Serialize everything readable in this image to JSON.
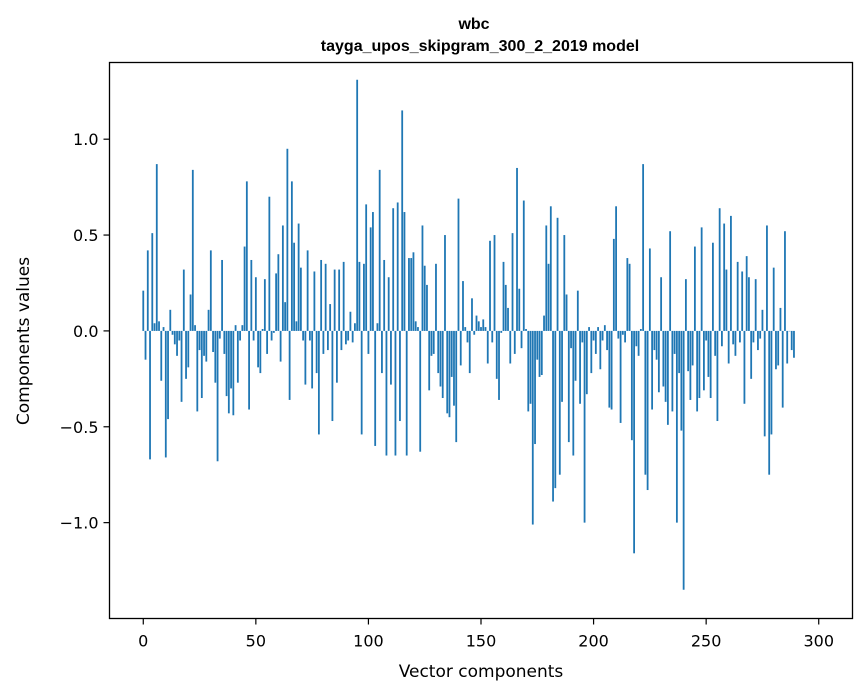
{
  "chart_data": {
    "type": "bar",
    "title": "wbc",
    "subtitle": "tayga_upos_skipgram_300_2_2019 model",
    "xlabel": "Vector components",
    "ylabel": "Components values",
    "xlim": [
      -15,
      315
    ],
    "ylim": [
      -1.5,
      1.4
    ],
    "x_ticks": [
      0,
      50,
      100,
      150,
      200,
      250,
      300
    ],
    "y_ticks": [
      -1.0,
      -0.5,
      0.0,
      0.5,
      1.0
    ],
    "y_tick_labels": [
      "−1.0",
      "−0.5",
      "0.0",
      "0.5",
      "1.0"
    ],
    "bar_color": "#1f77b4",
    "values": [
      0.21,
      -0.15,
      0.42,
      -0.67,
      0.51,
      0.04,
      0.87,
      0.05,
      -0.26,
      0.02,
      -0.66,
      -0.46,
      0.11,
      -0.02,
      -0.07,
      -0.13,
      -0.05,
      -0.37,
      0.32,
      -0.25,
      -0.19,
      0.19,
      0.84,
      0.03,
      -0.42,
      -0.1,
      -0.35,
      -0.13,
      -0.16,
      0.11,
      0.42,
      -0.11,
      -0.27,
      -0.68,
      -0.04,
      0.37,
      -0.12,
      -0.34,
      -0.43,
      -0.3,
      -0.44,
      0.03,
      -0.27,
      -0.05,
      0.03,
      0.44,
      0.78,
      -0.41,
      0.37,
      -0.05,
      0.28,
      -0.19,
      -0.22,
      0.01,
      0.27,
      -0.12,
      0.7,
      -0.05,
      -0.01,
      0.3,
      0.4,
      -0.16,
      0.55,
      0.15,
      0.95,
      -0.36,
      0.78,
      0.46,
      0.05,
      0.56,
      0.33,
      -0.05,
      -0.28,
      0.42,
      -0.05,
      -0.3,
      0.31,
      -0.22,
      -0.54,
      0.37,
      -0.12,
      0.35,
      -0.1,
      0.14,
      -0.47,
      0.32,
      -0.27,
      0.32,
      -0.1,
      0.36,
      -0.07,
      -0.05,
      0.1,
      -0.06,
      0.04,
      1.31,
      0.36,
      -0.54,
      0.35,
      0.66,
      -0.12,
      0.54,
      0.62,
      -0.6,
      0.04,
      0.84,
      -0.22,
      0.37,
      -0.65,
      0.28,
      -0.28,
      0.64,
      -0.65,
      0.67,
      -0.47,
      1.15,
      0.62,
      -0.65,
      0.38,
      0.38,
      0.41,
      0.05,
      0.02,
      -0.63,
      0.55,
      0.34,
      0.24,
      -0.31,
      -0.13,
      -0.12,
      0.35,
      -0.22,
      -0.29,
      -0.35,
      0.5,
      -0.43,
      -0.45,
      -0.24,
      -0.39,
      -0.58,
      0.69,
      -0.18,
      0.26,
      0.02,
      -0.06,
      -0.22,
      0.17,
      -0.02,
      0.08,
      0.05,
      0.02,
      0.06,
      0.02,
      -0.17,
      0.47,
      -0.06,
      0.5,
      -0.25,
      -0.36,
      -0.01,
      0.36,
      0.24,
      0.12,
      -0.17,
      0.51,
      -0.12,
      0.85,
      0.22,
      -0.09,
      0.68,
      0.01,
      -0.42,
      -0.38,
      -1.01,
      -0.59,
      -0.15,
      -0.24,
      -0.23,
      0.08,
      0.55,
      0.35,
      0.65,
      -0.89,
      -0.82,
      0.59,
      -0.75,
      -0.37,
      0.5,
      0.19,
      -0.58,
      -0.09,
      -0.65,
      -0.26,
      0.21,
      -0.38,
      -0.06,
      -1.0,
      -0.33,
      0.02,
      -0.22,
      -0.05,
      -0.12,
      0.02,
      -0.2,
      -0.05,
      0.03,
      -0.1,
      -0.4,
      -0.41,
      0.48,
      0.65,
      -0.04,
      -0.48,
      -0.02,
      -0.06,
      0.38,
      0.35,
      -0.57,
      -1.16,
      -0.08,
      -0.13,
      0.01,
      0.87,
      -0.75,
      -0.83,
      0.43,
      -0.41,
      -0.1,
      -0.15,
      -0.32,
      0.28,
      -0.29,
      -0.37,
      -0.49,
      0.52,
      -0.42,
      -0.12,
      -1.0,
      -0.22,
      -0.52,
      -1.35,
      0.27,
      -0.21,
      -0.36,
      -0.18,
      0.44,
      -0.42,
      -0.35,
      0.54,
      -0.31,
      -0.05,
      -0.24,
      -0.35,
      0.46,
      -0.13,
      -0.47,
      0.64,
      -0.08,
      0.56,
      0.32,
      -0.17,
      0.6,
      -0.07,
      -0.13,
      0.36,
      -0.06,
      0.31,
      -0.38,
      0.39,
      0.28,
      -0.25,
      -0.06,
      0.27,
      -0.1,
      -0.04,
      0.11,
      -0.55,
      0.55,
      -0.75,
      -0.54,
      0.33,
      -0.2,
      -0.18,
      0.12,
      -0.4,
      0.52,
      -0.17,
      0.0,
      -0.1,
      -0.14
    ]
  }
}
